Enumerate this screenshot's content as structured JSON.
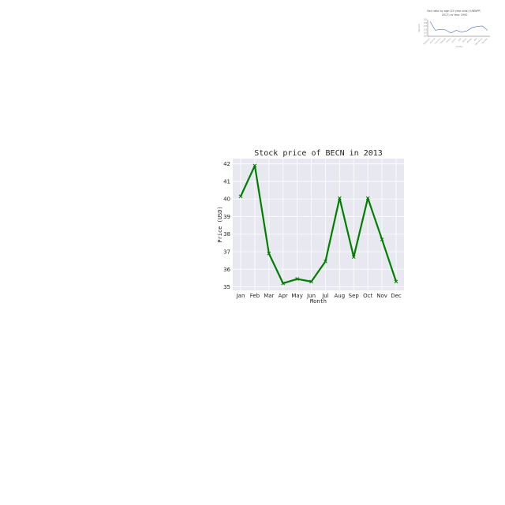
{
  "chart_data": [
    {
      "type": "line",
      "title": "Stock price of BECN in 2013",
      "xlabel": "Month",
      "ylabel": "Price (USD)",
      "categories": [
        "Jan",
        "Feb",
        "Mar",
        "Apr",
        "May",
        "Jun",
        "Jul",
        "Aug",
        "Sep",
        "Oct",
        "Nov",
        "Dec"
      ],
      "values": [
        40.15,
        41.9,
        36.9,
        35.2,
        35.45,
        35.3,
        36.45,
        40.05,
        36.7,
        40.05,
        37.7,
        35.3
      ],
      "ylim": [
        34.8,
        42.3
      ],
      "yticks": [
        35,
        36,
        37,
        38,
        39,
        40,
        41,
        42
      ],
      "grid": true,
      "marker": "x",
      "color": "#008000",
      "background": "#e8e8f0"
    },
    {
      "type": "line",
      "title": "Sex ratio by age (15 year olds) (UNWPP, 2017) vs Year 1950",
      "xlabel": "Country",
      "ylabel": "Sex ratio",
      "categories": [
        "Botswana",
        "Burundi",
        "Comoros",
        "Djibouti",
        "Eritrea",
        "Ghana",
        "Haiti",
        "Kenya",
        "Malawi",
        "Mali",
        "Mauritania",
        "Namibia"
      ],
      "values": [
        104.5,
        101.8,
        102.1,
        101.9,
        101.0,
        101.8,
        101.3,
        101.6,
        102.6,
        103.0,
        103.1,
        101.8
      ],
      "ylim": [
        100,
        105
      ],
      "yticks": [
        100,
        101,
        102,
        103,
        104,
        105
      ],
      "grid": false,
      "color": "#4a6fd6"
    }
  ]
}
